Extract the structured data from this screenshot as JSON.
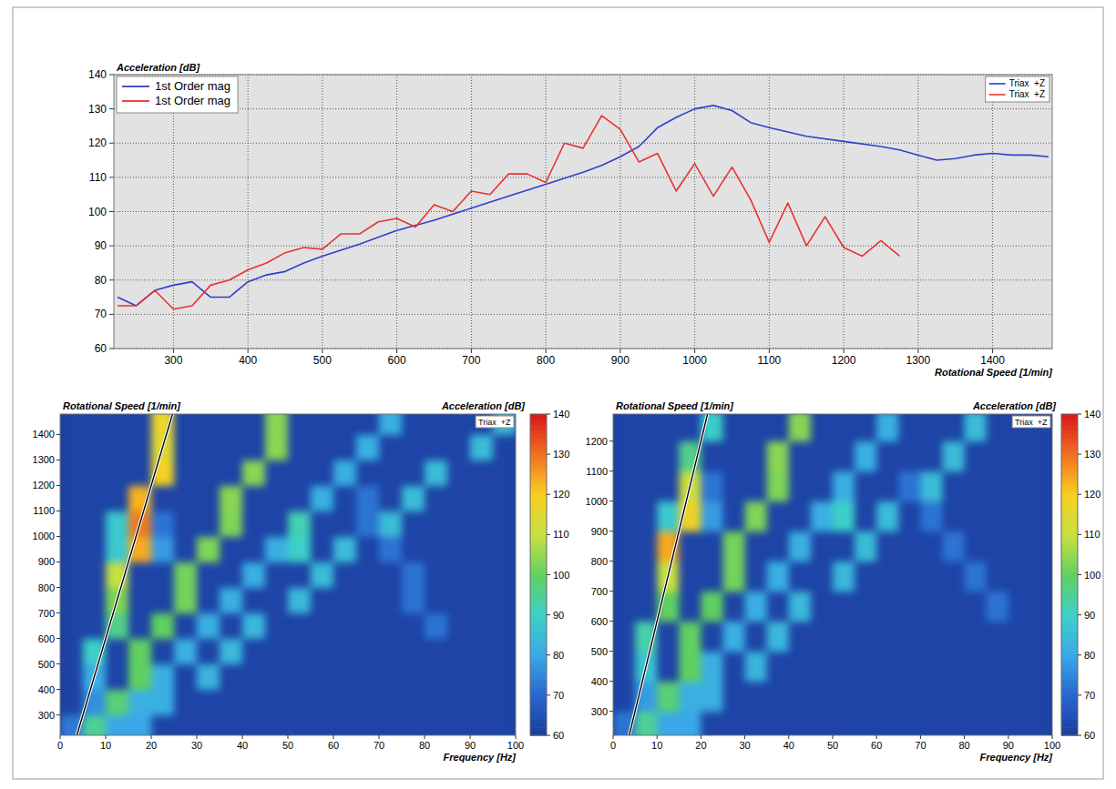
{
  "chart_data": [
    {
      "type": "line",
      "x_label": "Rotational Speed [1/min]",
      "y_label": "Acceleration [dB]",
      "xlim": [
        220,
        1480
      ],
      "xticks": [
        300,
        400,
        500,
        600,
        700,
        800,
        900,
        1000,
        1100,
        1200,
        1300,
        1400
      ],
      "ylim": [
        60,
        140
      ],
      "yticks": [
        60,
        70,
        80,
        90,
        100,
        110,
        120,
        130,
        140
      ],
      "grid": true,
      "legend": "upper left",
      "series": [
        {
          "name": "1st Order mag",
          "channel": "Triax  +Z",
          "color": "#2f3fcf",
          "x": [
            225,
            250,
            275,
            300,
            325,
            350,
            375,
            400,
            425,
            450,
            475,
            500,
            550,
            600,
            650,
            700,
            750,
            800,
            850,
            875,
            900,
            925,
            950,
            975,
            1000,
            1025,
            1050,
            1075,
            1100,
            1150,
            1200,
            1250,
            1275,
            1300,
            1325,
            1350,
            1375,
            1400,
            1425,
            1450,
            1475
          ],
          "values": [
            75,
            72.5,
            77,
            78.5,
            79.5,
            75,
            75,
            79.5,
            81.5,
            82.5,
            85,
            87,
            90.5,
            94.5,
            97.5,
            101,
            104.5,
            108,
            111.5,
            113.5,
            116,
            119,
            124.5,
            127.5,
            130,
            131,
            129.5,
            126,
            124.5,
            122,
            120.5,
            119,
            118,
            116.5,
            115,
            115.5,
            116.5,
            117,
            116.5,
            116.5,
            116
          ]
        },
        {
          "name": "1st Order mag",
          "channel": "Triax  +Z",
          "color": "#e83232",
          "x": [
            225,
            250,
            275,
            300,
            325,
            350,
            375,
            400,
            425,
            450,
            475,
            500,
            525,
            550,
            575,
            600,
            625,
            650,
            675,
            700,
            725,
            750,
            775,
            800,
            825,
            850,
            875,
            900,
            925,
            950,
            975,
            1000,
            1025,
            1050,
            1075,
            1100,
            1125,
            1150,
            1175,
            1200,
            1225,
            1250,
            1275
          ],
          "values": [
            72.5,
            72.5,
            77,
            71.5,
            72.5,
            78.5,
            80,
            83,
            85,
            88,
            89.5,
            89,
            93.5,
            93.5,
            97,
            98,
            95.5,
            102,
            100,
            106,
            105,
            111,
            111,
            108.5,
            120,
            118.5,
            128,
            124,
            114.5,
            117,
            106,
            114,
            104.5,
            113,
            103.5,
            91,
            102.5,
            90,
            98.5,
            89.5,
            87,
            91.5,
            87
          ]
        }
      ]
    },
    {
      "type": "heatmap",
      "x_label": "Frequency [Hz]",
      "y_label": "Rotational Speed [1/min]",
      "colorbar_label": "Acceleration [dB]",
      "channel": "Triax  +Z",
      "order_cursor": 1,
      "xlim": [
        0,
        100
      ],
      "xticks": [
        0,
        10,
        20,
        30,
        40,
        50,
        60,
        70,
        80,
        90,
        100
      ],
      "ylim": [
        220,
        1480
      ],
      "yticks": [
        300,
        400,
        500,
        600,
        700,
        800,
        900,
        1000,
        1100,
        1200,
        1300,
        1400
      ],
      "x_bins": [
        0,
        5,
        10,
        15,
        20,
        25,
        30,
        35,
        40,
        45,
        50,
        55,
        60,
        65,
        70,
        75,
        80,
        85,
        90,
        95,
        100
      ],
      "y_bins": [
        200,
        300,
        400,
        500,
        600,
        700,
        800,
        900,
        1000,
        1100,
        1200,
        1300,
        1400,
        1500
      ],
      "cells": [
        [
          73,
          95,
          80,
          80,
          62,
          62,
          62,
          62,
          62,
          62,
          62,
          62,
          62,
          62,
          62,
          62,
          62,
          62,
          62,
          62
        ],
        [
          62,
          76,
          98,
          82,
          82,
          62,
          62,
          62,
          62,
          62,
          62,
          62,
          62,
          62,
          62,
          62,
          62,
          62,
          62,
          62
        ],
        [
          62,
          82,
          62,
          100,
          82,
          62,
          83,
          62,
          62,
          62,
          62,
          62,
          62,
          62,
          62,
          62,
          62,
          62,
          62,
          62
        ],
        [
          62,
          90,
          62,
          100,
          62,
          82,
          62,
          84,
          62,
          62,
          62,
          62,
          62,
          62,
          62,
          62,
          62,
          62,
          62,
          62
        ],
        [
          62,
          62,
          96,
          62,
          100,
          62,
          82,
          62,
          84,
          62,
          62,
          62,
          62,
          62,
          62,
          62,
          72,
          62,
          62,
          62
        ],
        [
          62,
          62,
          103,
          62,
          62,
          102,
          62,
          82,
          62,
          62,
          84,
          62,
          62,
          62,
          62,
          72,
          62,
          62,
          62,
          62
        ],
        [
          62,
          62,
          110,
          62,
          62,
          102,
          62,
          62,
          82,
          62,
          62,
          85,
          62,
          62,
          62,
          72,
          62,
          62,
          62,
          62
        ],
        [
          62,
          62,
          88,
          124,
          78,
          62,
          103,
          62,
          62,
          82,
          90,
          62,
          85,
          62,
          72,
          62,
          62,
          62,
          62,
          62
        ],
        [
          62,
          62,
          88,
          129,
          72,
          62,
          62,
          103,
          62,
          62,
          92,
          62,
          62,
          72,
          85,
          62,
          62,
          62,
          62,
          62
        ],
        [
          62,
          62,
          62,
          123,
          62,
          62,
          62,
          104,
          62,
          62,
          62,
          82,
          62,
          72,
          62,
          85,
          62,
          62,
          62,
          62
        ],
        [
          62,
          62,
          62,
          62,
          119,
          62,
          62,
          62,
          104,
          62,
          62,
          62,
          82,
          62,
          62,
          62,
          85,
          62,
          62,
          62
        ],
        [
          62,
          62,
          62,
          62,
          115,
          62,
          62,
          62,
          62,
          104,
          62,
          62,
          62,
          82,
          62,
          62,
          62,
          62,
          85,
          62
        ],
        [
          62,
          62,
          62,
          62,
          117,
          62,
          62,
          62,
          62,
          104,
          62,
          62,
          62,
          62,
          82,
          62,
          62,
          62,
          62,
          85
        ]
      ],
      "colorbar_range": [
        60,
        140
      ],
      "colorbar_ticks": [
        60,
        70,
        80,
        90,
        100,
        110,
        120,
        130,
        140
      ]
    },
    {
      "type": "heatmap",
      "x_label": "Frequency [Hz]",
      "y_label": "Rotational Speed [1/min]",
      "colorbar_label": "Acceleration [dB]",
      "channel": "Triax  +Z",
      "order_cursor": 1,
      "xlim": [
        0,
        100
      ],
      "xticks": [
        0,
        10,
        20,
        30,
        40,
        50,
        60,
        70,
        80,
        90,
        100
      ],
      "ylim": [
        220,
        1290
      ],
      "yticks": [
        300,
        400,
        500,
        600,
        700,
        800,
        900,
        1000,
        1100,
        1200
      ],
      "x_bins": [
        0,
        5,
        10,
        15,
        20,
        25,
        30,
        35,
        40,
        45,
        50,
        55,
        60,
        65,
        70,
        75,
        80,
        85,
        90,
        95,
        100
      ],
      "y_bins": [
        200,
        300,
        400,
        500,
        600,
        700,
        800,
        900,
        1000,
        1100,
        1200,
        1300
      ],
      "cells": [
        [
          72,
          95,
          80,
          80,
          62,
          62,
          62,
          62,
          62,
          62,
          62,
          62,
          62,
          62,
          62,
          62,
          62,
          62,
          62,
          62
        ],
        [
          62,
          78,
          98,
          82,
          82,
          62,
          62,
          62,
          62,
          62,
          62,
          62,
          62,
          62,
          62,
          62,
          62,
          62,
          62,
          62
        ],
        [
          62,
          87,
          62,
          100,
          82,
          62,
          83,
          62,
          62,
          62,
          62,
          62,
          62,
          62,
          62,
          62,
          62,
          62,
          62,
          62
        ],
        [
          62,
          93,
          62,
          100,
          62,
          82,
          62,
          84,
          62,
          62,
          62,
          62,
          62,
          62,
          62,
          62,
          62,
          62,
          62,
          62
        ],
        [
          62,
          62,
          100,
          62,
          100,
          62,
          82,
          62,
          84,
          62,
          62,
          62,
          62,
          62,
          62,
          62,
          62,
          72,
          62,
          62
        ],
        [
          62,
          62,
          110,
          62,
          62,
          102,
          62,
          82,
          62,
          62,
          84,
          62,
          62,
          62,
          62,
          62,
          72,
          62,
          62,
          62
        ],
        [
          62,
          62,
          124,
          62,
          62,
          102,
          62,
          62,
          82,
          62,
          62,
          85,
          62,
          62,
          62,
          72,
          62,
          62,
          62,
          62
        ],
        [
          62,
          62,
          88,
          118,
          78,
          62,
          103,
          62,
          62,
          82,
          90,
          62,
          85,
          62,
          72,
          62,
          62,
          62,
          62,
          62
        ],
        [
          62,
          62,
          62,
          111,
          72,
          62,
          62,
          103,
          62,
          62,
          82,
          62,
          62,
          72,
          85,
          62,
          62,
          62,
          62,
          62
        ],
        [
          62,
          62,
          62,
          96,
          62,
          62,
          62,
          104,
          62,
          62,
          62,
          82,
          62,
          62,
          62,
          85,
          62,
          62,
          62,
          62
        ],
        [
          62,
          62,
          62,
          62,
          89,
          62,
          62,
          62,
          104,
          62,
          62,
          62,
          82,
          62,
          62,
          62,
          85,
          62,
          62,
          62
        ]
      ],
      "colorbar_range": [
        60,
        140
      ],
      "colorbar_ticks": [
        60,
        70,
        80,
        90,
        100,
        110,
        120,
        130,
        140
      ]
    }
  ]
}
